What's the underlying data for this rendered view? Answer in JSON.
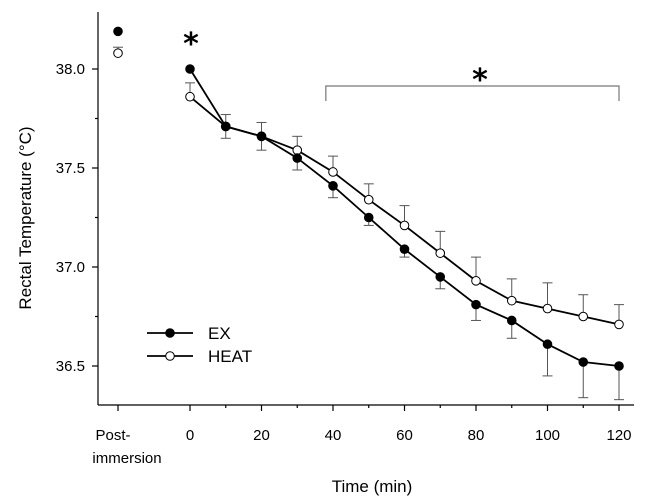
{
  "chart_data": {
    "type": "line",
    "xlabel": "Time (min)",
    "ylabel": "Rectal Temperature (°C)",
    "ylim": [
      36.25,
      38.25
    ],
    "xlim": [
      0,
      120
    ],
    "x_ticks": [
      "0",
      "20",
      "40",
      "60",
      "80",
      "100",
      "120"
    ],
    "x_tick_values": [
      0,
      20,
      40,
      60,
      80,
      100,
      120
    ],
    "y_ticks": [
      "36.5",
      "37.0",
      "37.5",
      "38.0"
    ],
    "y_tick_values": [
      36.5,
      37.0,
      37.5,
      38.0
    ],
    "post_immersion_label": [
      "Post-",
      "immersion"
    ],
    "x": [
      0,
      10,
      20,
      30,
      40,
      50,
      60,
      70,
      80,
      90,
      100,
      110,
      120
    ],
    "series": [
      {
        "name": "EX",
        "marker": "filled",
        "post_immersion": 38.19,
        "post_immersion_error": 0.0,
        "values": [
          38.0,
          37.71,
          37.66,
          37.55,
          37.41,
          37.25,
          37.09,
          36.95,
          36.81,
          36.73,
          36.61,
          36.52,
          36.5
        ],
        "errors": [
          0.0,
          0.06,
          0.07,
          0.06,
          0.06,
          0.04,
          0.04,
          0.06,
          0.08,
          0.09,
          0.16,
          0.18,
          0.17
        ]
      },
      {
        "name": "HEAT",
        "marker": "open",
        "post_immersion": 38.08,
        "post_immersion_error": 0.03,
        "values": [
          37.86,
          37.71,
          37.66,
          37.59,
          37.48,
          37.34,
          37.21,
          37.07,
          36.93,
          36.83,
          36.79,
          36.75,
          36.71
        ],
        "errors": [
          0.07,
          0.06,
          0.07,
          0.07,
          0.08,
          0.08,
          0.1,
          0.11,
          0.12,
          0.11,
          0.13,
          0.11,
          0.1
        ]
      }
    ],
    "annotations": {
      "star_symbol": "*",
      "star_at_x": 0,
      "bracket_x_range": [
        38,
        120
      ]
    },
    "legend_position": "bottom-left",
    "grid": false
  }
}
